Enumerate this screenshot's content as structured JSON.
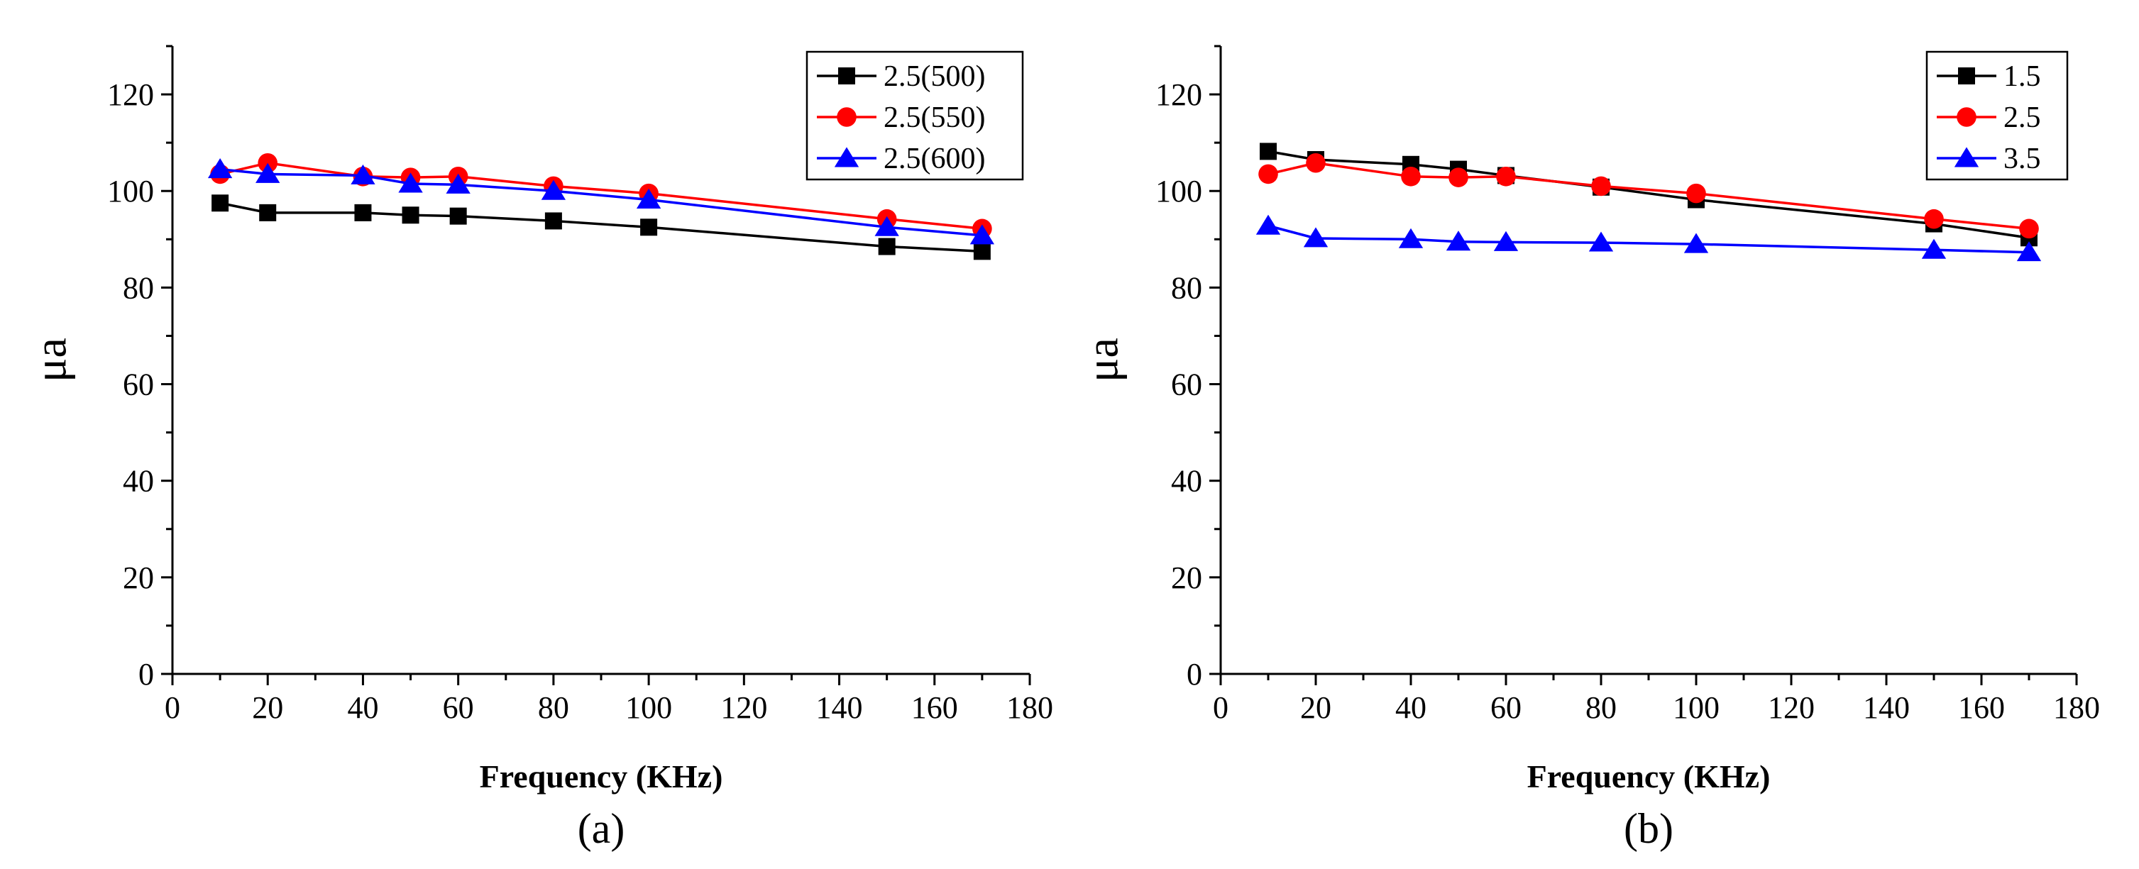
{
  "chart_data": [
    {
      "type": "line",
      "panel_label": "(a)",
      "xlabel": "Frequency (KHz)",
      "ylabel": "μa",
      "xlim": [
        0,
        180
      ],
      "ylim": [
        0,
        130
      ],
      "xticks": [
        0,
        20,
        40,
        60,
        80,
        100,
        120,
        140,
        160,
        180
      ],
      "yticks": [
        0,
        20,
        40,
        60,
        80,
        100,
        120
      ],
      "legend_position": "top-right",
      "x": [
        10,
        20,
        40,
        50,
        60,
        80,
        100,
        150,
        170
      ],
      "series": [
        {
          "name": "2.5(500)",
          "color": "#000000",
          "marker": "square",
          "values": [
            97.5,
            95.5,
            95.5,
            95,
            94.8,
            93.8,
            92.5,
            88.5,
            87.5
          ]
        },
        {
          "name": "2.5(550)",
          "color": "#ff0000",
          "marker": "circle",
          "values": [
            103.5,
            105.8,
            103,
            102.8,
            103,
            101,
            99.5,
            94.2,
            92.2
          ]
        },
        {
          "name": "2.5(600)",
          "color": "#0000ff",
          "marker": "triangle",
          "values": [
            104.5,
            103.5,
            103.2,
            101.5,
            101.3,
            100,
            98.2,
            92.5,
            90.8
          ]
        }
      ]
    },
    {
      "type": "line",
      "panel_label": "(b)",
      "xlabel": "Frequency (KHz)",
      "ylabel": "μa",
      "xlim": [
        0,
        180
      ],
      "ylim": [
        0,
        130
      ],
      "xticks": [
        0,
        20,
        40,
        60,
        80,
        100,
        120,
        140,
        160,
        180
      ],
      "yticks": [
        0,
        20,
        40,
        60,
        80,
        100,
        120
      ],
      "legend_position": "top-right",
      "x": [
        10,
        20,
        40,
        50,
        60,
        80,
        100,
        150,
        170
      ],
      "series": [
        {
          "name": "1.5",
          "color": "#000000",
          "marker": "square",
          "values": [
            108.2,
            106.5,
            105.5,
            104.5,
            103.2,
            100.8,
            98.2,
            93.2,
            90.3
          ]
        },
        {
          "name": "2.5",
          "color": "#ff0000",
          "marker": "circle",
          "values": [
            103.5,
            105.8,
            103,
            102.8,
            103,
            101,
            99.5,
            94.2,
            92.2
          ]
        },
        {
          "name": "3.5",
          "color": "#0000ff",
          "marker": "triangle",
          "values": [
            92.8,
            90.2,
            90,
            89.5,
            89.4,
            89.3,
            89,
            87.8,
            87.3
          ]
        }
      ]
    }
  ]
}
